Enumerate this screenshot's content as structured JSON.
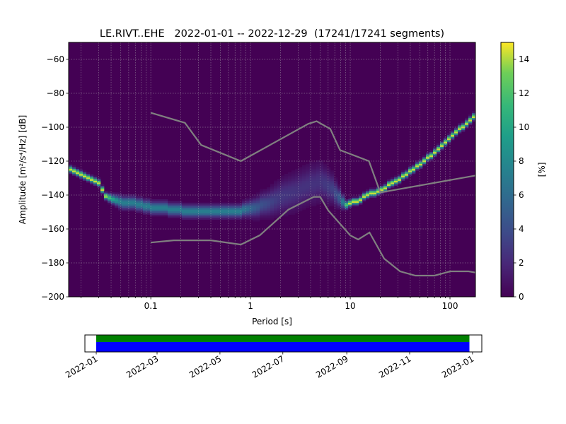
{
  "chart_data": [
    {
      "type": "heatmap",
      "title": "LE.RIVT..EHE   2022-01-01 -- 2022-12-29  (17241/17241 segments)",
      "xlabel": "Period [s]",
      "ylabel": "Amplitude [m²/s⁴/Hz] [dB]",
      "x_scale": "log",
      "xlim": [
        0.015,
        180
      ],
      "ylim": [
        -200,
        -50
      ],
      "x_ticks": [
        {
          "v": 0.1,
          "label": "0.1"
        },
        {
          "v": 1,
          "label": "1"
        },
        {
          "v": 10,
          "label": "10"
        },
        {
          "v": 100,
          "label": "100"
        }
      ],
      "y_ticks": [
        -60,
        -80,
        -100,
        -120,
        -140,
        -160,
        -180,
        -200
      ],
      "grid": true,
      "colorbar": {
        "label": "[%]",
        "min": 0,
        "max": 15,
        "ticks": [
          0,
          2,
          4,
          6,
          8,
          10,
          12,
          14
        ],
        "colormap": "viridis"
      },
      "ppsd_mode": {
        "periods": [
          0.015,
          0.02,
          0.025,
          0.03,
          0.035,
          0.04,
          0.05,
          0.07,
          0.1,
          0.15,
          0.2,
          0.3,
          0.5,
          0.8,
          1.0,
          1.5,
          2.0,
          3.0,
          4.0,
          4.8,
          5.5,
          6.5,
          7.5,
          8.5,
          9.3,
          10,
          12,
          15,
          20,
          30,
          50,
          80,
          120,
          180
        ],
        "db": [
          -124,
          -128,
          -131,
          -133,
          -140,
          -142,
          -144,
          -145,
          -147,
          -148,
          -149,
          -150,
          -150,
          -149,
          -148,
          -145,
          -141,
          -137,
          -134,
          -132,
          -133,
          -136,
          -140,
          -144,
          -146,
          -145,
          -143,
          -140,
          -137,
          -131,
          -122,
          -112,
          -102,
          -93
        ],
        "spread": [
          1.5,
          1.5,
          1.5,
          1.5,
          1.5,
          2,
          3,
          3,
          3,
          3,
          3,
          3,
          3,
          3,
          4,
          6,
          8,
          9,
          9,
          9,
          8,
          7,
          5,
          3,
          1.5,
          1.5,
          1.5,
          1.5,
          1.5,
          1.5,
          1.5,
          1.5,
          1.5,
          1.5
        ]
      },
      "noise_models": [
        {
          "periods": [
            0.1,
            0.17,
            0.4,
            0.8,
            1.24,
            2.4,
            4.3,
            5,
            6,
            10,
            12,
            15.6,
            21.9,
            31.6,
            45,
            70,
            101,
            154,
            180
          ],
          "db": [
            -168,
            -166.7,
            -166.7,
            -169.2,
            -163.7,
            -148.6,
            -141.1,
            -141.1,
            -149,
            -163.8,
            -166.2,
            -162.1,
            -177.5,
            -185,
            -187.5,
            -187.5,
            -185,
            -185,
            -185.7
          ]
        },
        {
          "periods": [
            0.1,
            0.22,
            0.32,
            0.8,
            3.8,
            4.6,
            6.3,
            7.9,
            15.4,
            20,
            180
          ],
          "db": [
            -91.5,
            -97.4,
            -110.5,
            -120,
            -98,
            -96.5,
            -101,
            -113.5,
            -120,
            -138.5,
            -128.5
          ]
        }
      ]
    },
    {
      "type": "timeline",
      "x_ticks": [
        "2022-01",
        "2022-03",
        "2022-05",
        "2022-07",
        "2022-09",
        "2022-11",
        "2023-01"
      ],
      "xlim": [
        "2021-12-21",
        "2023-01-10"
      ],
      "bars": [
        {
          "start": "2022-01-01",
          "end": "2022-12-29",
          "color": "#008000"
        },
        {
          "start": "2022-01-01",
          "end": "2022-12-29",
          "color": "#0000ff"
        }
      ]
    }
  ]
}
